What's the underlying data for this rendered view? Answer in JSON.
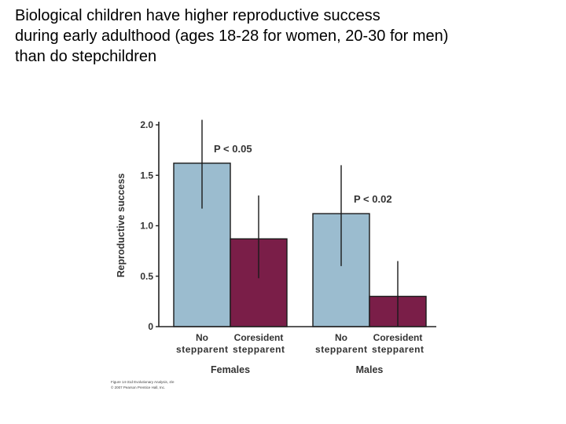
{
  "slide": {
    "title_lines": [
      "Biological children have higher reproductive success",
      "during early adulthood (ages 18-28 for women, 20-30 for men)",
      "than do stepchildren"
    ]
  },
  "chart_data": {
    "type": "bar",
    "ylabel": "Reproductive success",
    "ylim": [
      0,
      2.0
    ],
    "yticks": [
      "0",
      "0.5",
      "1.0",
      "1.5",
      "2.0"
    ],
    "ytick_values": [
      0,
      0.5,
      1.0,
      1.5,
      2.0
    ],
    "groups": [
      {
        "name": "Females",
        "annotation": "P < 0.05",
        "bars": [
          {
            "label_lines": [
              "No",
              "stepparent"
            ],
            "value": 1.62,
            "err_low": 1.17,
            "err_high": 2.05,
            "color": "#9bbccf"
          },
          {
            "label_lines": [
              "Coresident",
              "stepparent"
            ],
            "value": 0.87,
            "err_low": 0.48,
            "err_high": 1.3,
            "color": "#7a1e48"
          }
        ]
      },
      {
        "name": "Males",
        "annotation": "P < 0.02",
        "bars": [
          {
            "label_lines": [
              "No",
              "stepparent"
            ],
            "value": 1.12,
            "err_low": 0.6,
            "err_high": 1.6,
            "color": "#9bbccf"
          },
          {
            "label_lines": [
              "Coresident",
              "stepparent"
            ],
            "value": 0.3,
            "err_low": 0.0,
            "err_high": 0.65,
            "color": "#7a1e48"
          }
        ]
      }
    ],
    "colors": {
      "no_stepparent": "#9bbccf",
      "coresident_stepparent": "#7a1e48",
      "axis": "#222222"
    }
  },
  "credit": {
    "lines": [
      "Figure 14-31d Evolutionary Analysis, 4/e",
      "© 2007 Pearson Prentice Hall, Inc."
    ]
  }
}
